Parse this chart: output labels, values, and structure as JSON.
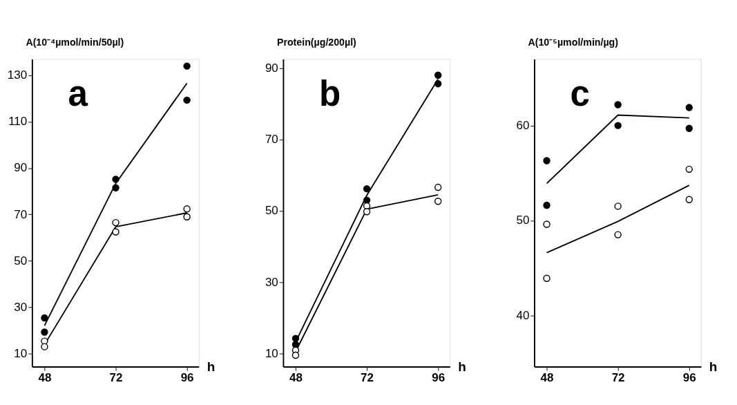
{
  "chart_data": [
    {
      "type": "line",
      "ylabel": "A(10⁻⁴µmol/min/50µl)",
      "xlabel": "h",
      "annotations": [
        "a"
      ],
      "xlim": [
        43.8,
        100
      ],
      "xticks": [
        48,
        72,
        96
      ],
      "ylim": [
        4.4,
        137
      ],
      "yticks": [
        10,
        30,
        50,
        70,
        90,
        110,
        130
      ],
      "grid": false,
      "line_style": "solid",
      "series": [
        {
          "marker": "none",
          "color": "#000000",
          "x": [
            48,
            72,
            96
          ],
          "values": [
            22.1,
            83.4,
            126.6
          ]
        },
        {
          "marker": "none",
          "color": "#000000",
          "x": [
            48,
            72,
            96
          ],
          "values": [
            13.9,
            64.7,
            70.7
          ]
        },
        {
          "type": "scatter",
          "marker": "circle",
          "color": "#000000",
          "x": [
            48,
            48,
            72,
            72,
            96,
            96
          ],
          "values": [
            25.4,
            19.3,
            85.2,
            81.5,
            134,
            119.3
          ]
        },
        {
          "type": "scatter",
          "marker": "circle",
          "color": "#ffffff",
          "x": [
            48,
            48,
            72,
            72,
            96,
            96
          ],
          "values": [
            15.4,
            13,
            66.5,
            62.5,
            72.4,
            69
          ]
        }
      ]
    },
    {
      "type": "line",
      "ylabel": "Protein(µg/200µl)",
      "xlabel": "h",
      "annotations": [
        "b"
      ],
      "xlim": [
        43.8,
        100
      ],
      "xticks": [
        48,
        72,
        96
      ],
      "ylim": [
        6.4,
        92.5
      ],
      "yticks": [
        10,
        30,
        50,
        70,
        90
      ],
      "grid": false,
      "line_style": "solid",
      "series": [
        {
          "marker": "none",
          "color": "#000000",
          "x": [
            48,
            72,
            96
          ],
          "values": [
            13.3,
            54.4,
            86.9
          ]
        },
        {
          "marker": "none",
          "color": "#000000",
          "x": [
            48,
            72,
            96
          ],
          "values": [
            10.6,
            50.5,
            54.5
          ]
        },
        {
          "type": "scatter",
          "marker": "circle",
          "color": "#000000",
          "x": [
            48,
            48,
            72,
            72,
            96,
            96
          ],
          "values": [
            14.3,
            12.6,
            56.2,
            53,
            88,
            85.6
          ]
        },
        {
          "type": "scatter",
          "marker": "circle",
          "color": "#ffffff",
          "x": [
            48,
            48,
            72,
            72,
            96,
            96
          ],
          "values": [
            11,
            9.6,
            51.4,
            49.8,
            56.6,
            52.7
          ]
        }
      ]
    },
    {
      "type": "line",
      "ylabel": "A(10⁻⁵µmol/min/µg)",
      "xlabel": "h",
      "annotations": [
        "c"
      ],
      "xlim": [
        43.8,
        100
      ],
      "xticks": [
        48,
        72,
        96
      ],
      "ylim": [
        34.6,
        67
      ],
      "yticks": [
        40,
        50,
        60
      ],
      "grid": false,
      "line_style": "solid",
      "series": [
        {
          "marker": "none",
          "color": "#000000",
          "x": [
            48,
            72,
            96
          ],
          "values": [
            53.9,
            61.1,
            60.8
          ]
        },
        {
          "marker": "none",
          "color": "#000000",
          "x": [
            48,
            72,
            96
          ],
          "values": [
            46.6,
            49.9,
            53.7
          ]
        },
        {
          "type": "scatter",
          "marker": "circle",
          "color": "#000000",
          "x": [
            48,
            48,
            72,
            72,
            96,
            96
          ],
          "values": [
            56.3,
            51.6,
            62.2,
            60,
            61.9,
            59.7
          ]
        },
        {
          "type": "scatter",
          "marker": "circle",
          "color": "#ffffff",
          "x": [
            48,
            48,
            72,
            72,
            96,
            96
          ],
          "values": [
            49.6,
            43.9,
            51.5,
            48.5,
            55.4,
            52.2
          ]
        }
      ]
    }
  ]
}
